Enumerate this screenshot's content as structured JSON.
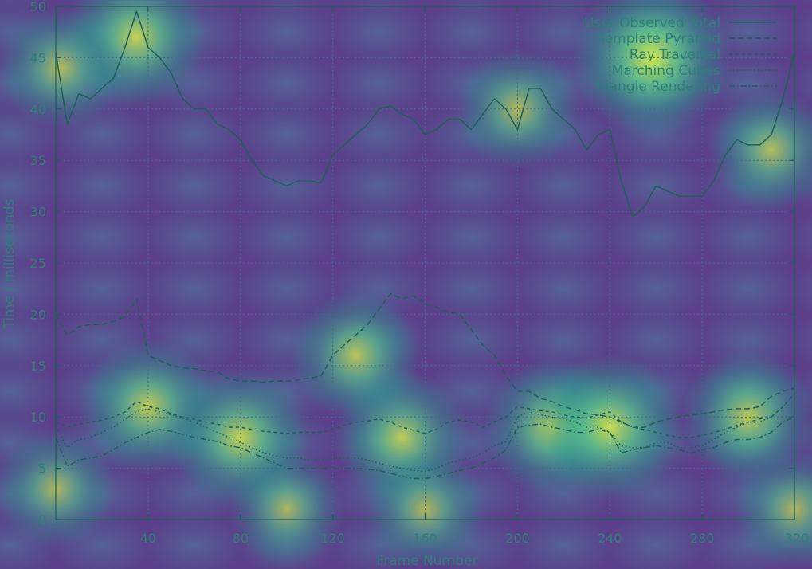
{
  "chart_data": {
    "type": "line",
    "title": "",
    "xlabel": "Frame Number",
    "ylabel": "Time / milliseconds",
    "xlim": [
      0,
      320
    ],
    "ylim": [
      0,
      50
    ],
    "xticks": [
      40,
      80,
      120,
      160,
      200,
      240,
      280,
      320
    ],
    "yticks": [
      0,
      5,
      10,
      15,
      20,
      25,
      30,
      35,
      40,
      45,
      50
    ],
    "grid": true,
    "legend_position": "top-right",
    "colors": {
      "background": "#5b3f8a",
      "line": "#1f5f5a",
      "grid": "#3d6d8a",
      "text": "#2e7f78",
      "heat_low": "#4f3a86",
      "heat_mid": "#2a9d8f",
      "heat_high": "#c8e34a"
    },
    "x": [
      0,
      5,
      10,
      15,
      20,
      25,
      30,
      35,
      40,
      45,
      50,
      55,
      60,
      65,
      70,
      75,
      80,
      85,
      90,
      95,
      100,
      105,
      110,
      115,
      120,
      125,
      130,
      135,
      140,
      145,
      150,
      155,
      160,
      165,
      170,
      175,
      180,
      185,
      190,
      195,
      200,
      205,
      210,
      215,
      220,
      225,
      230,
      235,
      240,
      245,
      250,
      255,
      260,
      265,
      270,
      275,
      280,
      285,
      290,
      295,
      300,
      305,
      310,
      315,
      320
    ],
    "series": [
      {
        "name": "User Observed Total",
        "dash": "solid",
        "values": [
          45.5,
          38.5,
          41.5,
          41.0,
          42.0,
          43.0,
          46.0,
          49.5,
          46.0,
          45.0,
          43.5,
          41.0,
          40.0,
          40.0,
          38.5,
          38.0,
          37.0,
          35.0,
          33.5,
          33.0,
          32.5,
          33.0,
          33.0,
          32.8,
          35.5,
          36.5,
          37.5,
          38.5,
          40.0,
          40.3,
          39.5,
          39.0,
          37.5,
          38.0,
          39.0,
          39.0,
          38.0,
          39.5,
          41.0,
          40.0,
          38.0,
          42.0,
          42.0,
          40.0,
          39.0,
          38.0,
          36.0,
          37.5,
          38.0,
          33.0,
          29.5,
          30.5,
          32.5,
          32.0,
          31.5,
          31.5,
          31.5,
          33.0,
          35.5,
          37.0,
          36.5,
          36.5,
          37.5,
          41.0,
          45.5
        ]
      },
      {
        "name": "Template Pyramid",
        "dash": "dashed",
        "values": [
          20.0,
          18.0,
          18.8,
          19.0,
          19.0,
          19.3,
          19.8,
          21.5,
          16.0,
          15.5,
          15.0,
          14.8,
          14.7,
          14.5,
          14.4,
          13.7,
          13.5,
          13.5,
          13.4,
          13.5,
          13.5,
          13.6,
          13.8,
          14.0,
          16.0,
          17.0,
          18.0,
          19.0,
          20.5,
          22.0,
          21.5,
          21.8,
          21.0,
          20.7,
          20.2,
          20.0,
          18.5,
          17.0,
          16.0,
          14.0,
          12.5,
          12.5,
          11.8,
          11.5,
          11.0,
          10.7,
          10.3,
          10.2,
          10.0,
          9.5,
          9.0,
          9.0,
          9.5,
          9.8,
          10.0,
          10.2,
          10.3,
          10.5,
          10.7,
          10.8,
          10.8,
          11.0,
          12.0,
          12.5,
          12.8
        ]
      },
      {
        "name": "Ray Traversal",
        "dash": "short-dashed",
        "values": [
          9.5,
          9.0,
          9.3,
          9.5,
          9.7,
          10.0,
          10.5,
          11.5,
          11.0,
          10.8,
          10.3,
          10.0,
          9.8,
          9.5,
          9.3,
          9.0,
          9.0,
          8.8,
          8.6,
          8.5,
          8.4,
          8.5,
          8.5,
          8.5,
          8.8,
          9.2,
          9.5,
          9.6,
          9.8,
          9.5,
          9.0,
          8.7,
          8.4,
          8.8,
          9.5,
          9.7,
          9.5,
          9.0,
          9.5,
          10.0,
          11.0,
          10.8,
          10.6,
          10.5,
          10.2,
          10.0,
          9.9,
          10.2,
          10.5,
          9.5,
          9.0,
          8.8,
          8.5,
          8.2,
          8.0,
          8.0,
          8.2,
          8.5,
          8.8,
          9.2,
          9.5,
          9.8,
          10.0,
          11.0,
          12.2
        ]
      },
      {
        "name": "Marching Cubes",
        "dash": "dotted",
        "values": [
          9.0,
          7.0,
          7.8,
          8.0,
          8.5,
          9.0,
          9.8,
          10.5,
          10.8,
          10.5,
          10.2,
          9.9,
          9.5,
          9.0,
          8.5,
          8.0,
          7.5,
          7.0,
          6.5,
          6.2,
          6.0,
          6.0,
          5.8,
          5.8,
          6.0,
          6.0,
          6.0,
          5.8,
          5.5,
          5.2,
          5.0,
          4.8,
          4.7,
          5.0,
          5.5,
          5.8,
          6.0,
          6.5,
          7.2,
          7.6,
          10.0,
          10.5,
          10.2,
          10.0,
          9.8,
          9.5,
          9.0,
          9.0,
          8.5,
          7.2,
          7.0,
          7.0,
          7.5,
          7.5,
          7.0,
          7.0,
          7.2,
          7.8,
          8.5,
          9.0,
          9.5,
          9.5,
          10.0,
          11.0,
          12.2
        ]
      },
      {
        "name": "Triangle Rendering",
        "dash": "dash-dot",
        "values": [
          8.0,
          5.2,
          5.8,
          6.0,
          6.2,
          6.8,
          7.5,
          8.0,
          8.5,
          8.8,
          8.6,
          8.3,
          8.0,
          7.8,
          7.6,
          7.2,
          7.0,
          6.5,
          6.0,
          5.5,
          5.0,
          5.0,
          5.0,
          5.0,
          5.0,
          5.0,
          5.0,
          4.9,
          4.8,
          4.5,
          4.2,
          4.0,
          4.0,
          4.2,
          4.5,
          4.8,
          5.0,
          5.5,
          6.0,
          6.8,
          9.0,
          9.2,
          9.3,
          9.0,
          8.8,
          8.5,
          8.5,
          8.8,
          8.5,
          6.5,
          6.8,
          7.0,
          7.2,
          7.0,
          6.8,
          6.5,
          6.8,
          7.0,
          7.5,
          7.8,
          7.8,
          8.0,
          8.5,
          9.5,
          10.0
        ]
      }
    ],
    "heat_spots": [
      {
        "x": 35,
        "y": 47,
        "intensity": 0.75
      },
      {
        "x": 258,
        "y": 45,
        "intensity": 1.0
      },
      {
        "x": 130,
        "y": 16,
        "intensity": 0.6
      },
      {
        "x": 40,
        "y": 11,
        "intensity": 0.7
      },
      {
        "x": 80,
        "y": 8,
        "intensity": 0.75
      },
      {
        "x": 150,
        "y": 8,
        "intensity": 0.65
      },
      {
        "x": 215,
        "y": 9,
        "intensity": 0.7
      },
      {
        "x": 240,
        "y": 9,
        "intensity": 0.85
      },
      {
        "x": 300,
        "y": 10,
        "intensity": 0.65
      },
      {
        "x": 2,
        "y": 44,
        "intensity": 0.5
      },
      {
        "x": 200,
        "y": 40,
        "intensity": 0.5
      },
      {
        "x": 310,
        "y": 36,
        "intensity": 0.5
      },
      {
        "x": 0,
        "y": 3,
        "intensity": 0.45
      },
      {
        "x": 160,
        "y": 1,
        "intensity": 0.45
      },
      {
        "x": 100,
        "y": 1,
        "intensity": 0.4
      },
      {
        "x": 320,
        "y": 1,
        "intensity": 0.45
      }
    ]
  }
}
